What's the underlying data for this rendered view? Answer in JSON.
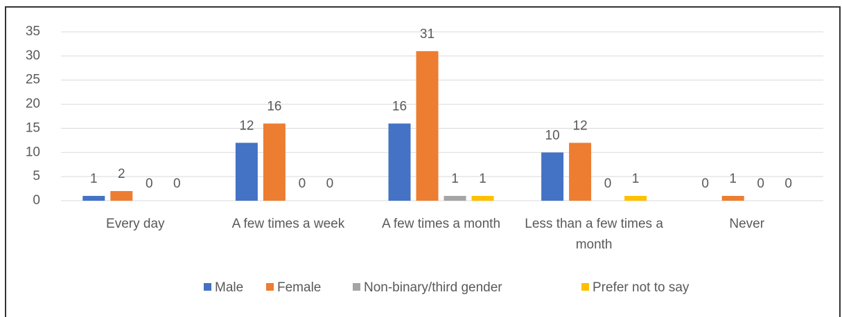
{
  "chart_data": {
    "type": "bar",
    "categories": [
      "Every day",
      "A few times a week",
      "A few times a month",
      "Less than a few times a month",
      "Never"
    ],
    "series": [
      {
        "name": "Male",
        "color": "#4472c4",
        "values": [
          1,
          12,
          16,
          10,
          0
        ]
      },
      {
        "name": "Female",
        "color": "#ed7d31",
        "values": [
          2,
          16,
          31,
          12,
          1
        ]
      },
      {
        "name": "Non-binary/third gender",
        "color": "#a5a5a5",
        "values": [
          0,
          0,
          1,
          0,
          0
        ]
      },
      {
        "name": "Prefer not to say",
        "color": "#ffc000",
        "values": [
          0,
          0,
          1,
          1,
          0
        ]
      }
    ],
    "ylim": [
      0,
      35
    ],
    "yticks": [
      0,
      5,
      10,
      15,
      20,
      25,
      30,
      35
    ],
    "grid": true,
    "legend": "bottom"
  }
}
